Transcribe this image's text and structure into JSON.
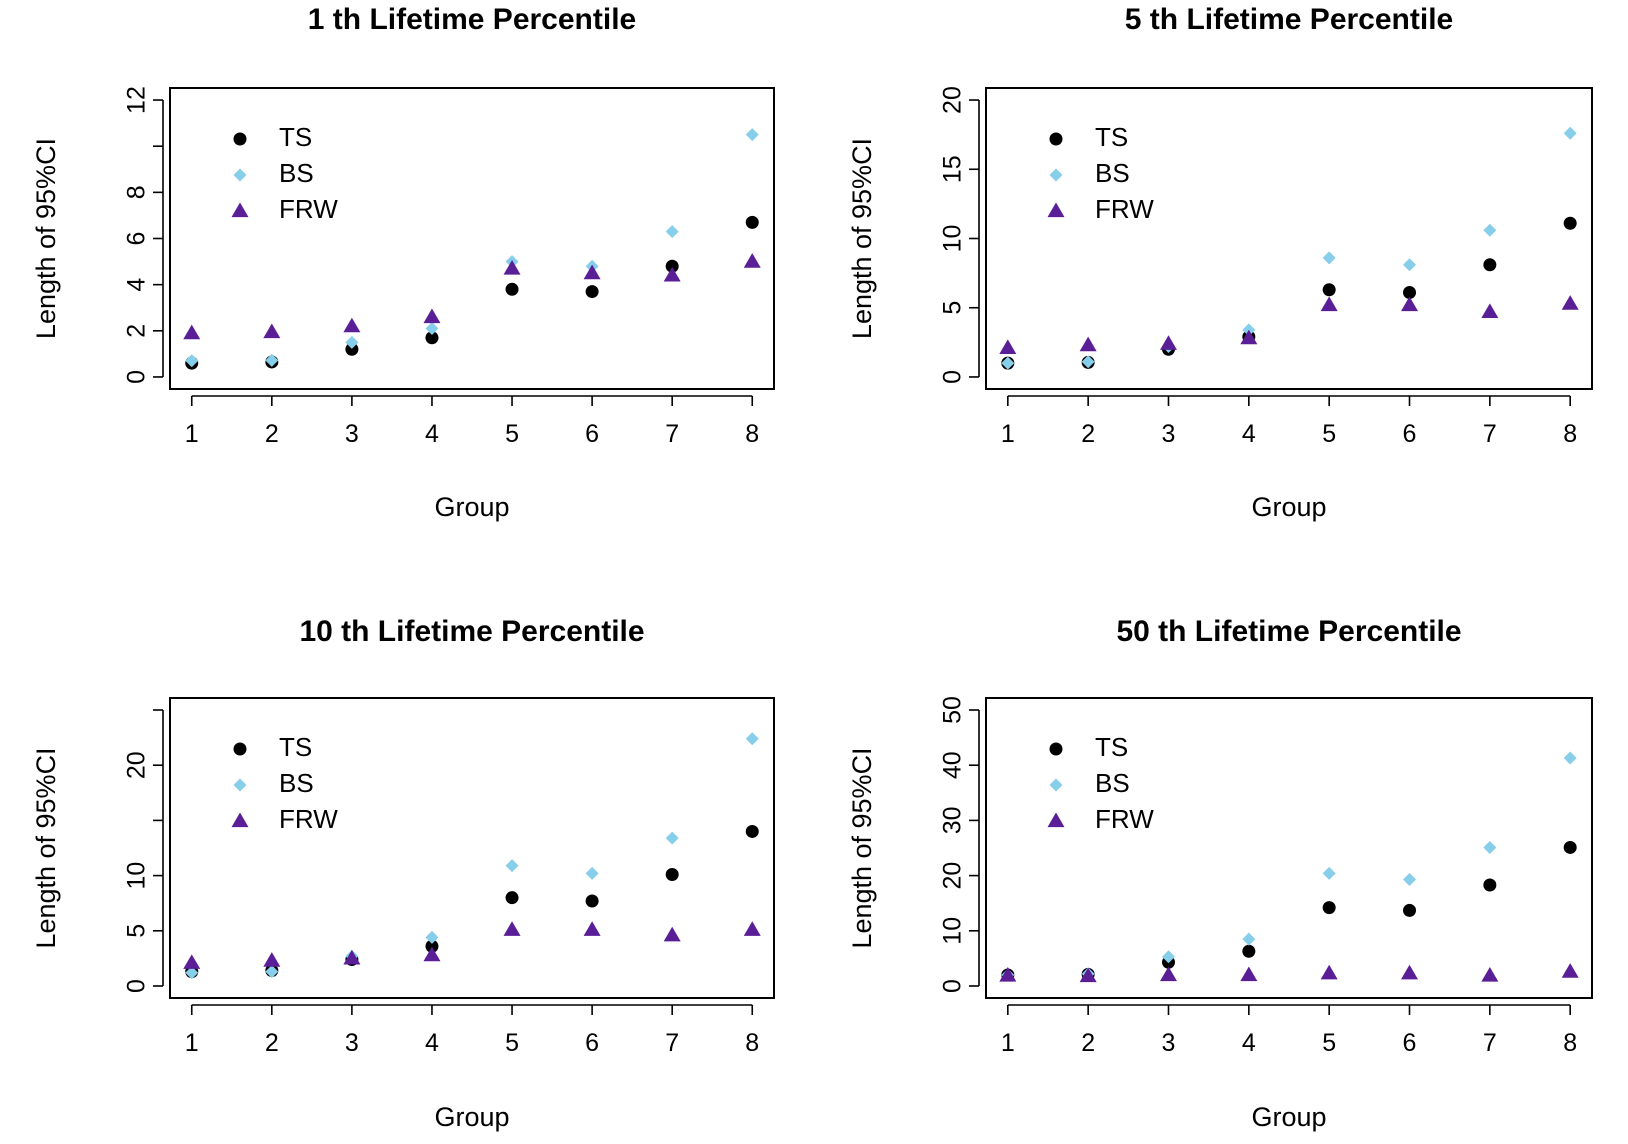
{
  "chart_data": [
    {
      "type": "scatter",
      "title": "1 th Lifetime Percentile",
      "xlabel": "Group",
      "ylabel": "Length of 95%CI",
      "x": [
        1,
        2,
        3,
        4,
        5,
        6,
        7,
        8
      ],
      "x_ticks": [
        "1",
        "2",
        "3",
        "4",
        "5",
        "6",
        "7",
        "8"
      ],
      "ylim": [
        0,
        12
      ],
      "y_ticks": [
        0,
        2,
        4,
        6,
        8,
        10,
        12
      ],
      "y_tick_labels": [
        "0",
        "2",
        "4",
        "6",
        "8",
        "",
        "12"
      ],
      "legend_position": "top-left",
      "grid": false,
      "series": [
        {
          "name": "TS",
          "marker": "circle",
          "color": "#000000",
          "values": [
            0.6,
            0.65,
            1.2,
            1.7,
            3.8,
            3.7,
            4.8,
            6.7
          ]
        },
        {
          "name": "BS",
          "marker": "diamond",
          "color": "#87ceeb",
          "values": [
            0.7,
            0.72,
            1.5,
            2.1,
            5.0,
            4.8,
            6.3,
            10.5
          ]
        },
        {
          "name": "FRW",
          "marker": "triangle",
          "color": "#5a1e96",
          "values": [
            1.9,
            1.95,
            2.2,
            2.6,
            4.7,
            4.5,
            4.4,
            5.0
          ]
        }
      ]
    },
    {
      "type": "scatter",
      "title": "5 th Lifetime Percentile",
      "xlabel": "Group",
      "ylabel": "Length of 95%CI",
      "x": [
        1,
        2,
        3,
        4,
        5,
        6,
        7,
        8
      ],
      "x_ticks": [
        "1",
        "2",
        "3",
        "4",
        "5",
        "6",
        "7",
        "8"
      ],
      "ylim": [
        0,
        20
      ],
      "y_ticks": [
        0,
        5,
        10,
        15,
        20
      ],
      "y_tick_labels": [
        "0",
        "5",
        "10",
        "15",
        "20"
      ],
      "legend_position": "top-left",
      "grid": false,
      "series": [
        {
          "name": "TS",
          "marker": "circle",
          "color": "#000000",
          "values": [
            1.0,
            1.05,
            2.0,
            2.9,
            6.3,
            6.1,
            8.1,
            11.1
          ]
        },
        {
          "name": "BS",
          "marker": "diamond",
          "color": "#87ceeb",
          "values": [
            1.0,
            1.1,
            2.2,
            3.4,
            8.6,
            8.1,
            10.6,
            17.6
          ]
        },
        {
          "name": "FRW",
          "marker": "triangle",
          "color": "#5a1e96",
          "values": [
            2.1,
            2.3,
            2.4,
            2.8,
            5.2,
            5.2,
            4.7,
            5.3
          ]
        }
      ]
    },
    {
      "type": "scatter",
      "title": "10 th Lifetime Percentile",
      "xlabel": "Group",
      "ylabel": "Length of 95%CI",
      "x": [
        1,
        2,
        3,
        4,
        5,
        6,
        7,
        8
      ],
      "x_ticks": [
        "1",
        "2",
        "3",
        "4",
        "5",
        "6",
        "7",
        "8"
      ],
      "ylim": [
        0,
        25
      ],
      "y_ticks": [
        0,
        5,
        10,
        15,
        20,
        25
      ],
      "y_tick_labels": [
        "0",
        "5",
        "10",
        "",
        "20",
        ""
      ],
      "legend_position": "top-left",
      "grid": false,
      "series": [
        {
          "name": "TS",
          "marker": "circle",
          "color": "#000000",
          "values": [
            1.3,
            1.4,
            2.4,
            3.6,
            8.0,
            7.7,
            10.1,
            14.0
          ]
        },
        {
          "name": "BS",
          "marker": "diamond",
          "color": "#87ceeb",
          "values": [
            1.2,
            1.3,
            2.7,
            4.4,
            10.9,
            10.2,
            13.4,
            22.4
          ]
        },
        {
          "name": "FRW",
          "marker": "triangle",
          "color": "#5a1e96",
          "values": [
            2.1,
            2.3,
            2.5,
            2.8,
            5.1,
            5.1,
            4.6,
            5.1
          ]
        }
      ]
    },
    {
      "type": "scatter",
      "title": "50 th Lifetime Percentile",
      "xlabel": "Group",
      "ylabel": "Length of 95%CI",
      "x": [
        1,
        2,
        3,
        4,
        5,
        6,
        7,
        8
      ],
      "x_ticks": [
        "1",
        "2",
        "3",
        "4",
        "5",
        "6",
        "7",
        "8"
      ],
      "ylim": [
        0,
        50
      ],
      "y_ticks": [
        0,
        10,
        20,
        30,
        40,
        50
      ],
      "y_tick_labels": [
        "0",
        "10",
        "20",
        "30",
        "40",
        "50"
      ],
      "legend_position": "top-left",
      "grid": false,
      "series": [
        {
          "name": "TS",
          "marker": "circle",
          "color": "#000000",
          "values": [
            2.0,
            2.1,
            4.3,
            6.3,
            14.2,
            13.7,
            18.3,
            25.1
          ]
        },
        {
          "name": "BS",
          "marker": "diamond",
          "color": "#87ceeb",
          "values": [
            2.0,
            2.2,
            5.3,
            8.5,
            20.4,
            19.3,
            25.1,
            41.3
          ]
        },
        {
          "name": "FRW",
          "marker": "triangle",
          "color": "#5a1e96",
          "values": [
            1.9,
            1.8,
            2.0,
            2.0,
            2.3,
            2.3,
            1.9,
            2.6
          ]
        }
      ]
    }
  ]
}
